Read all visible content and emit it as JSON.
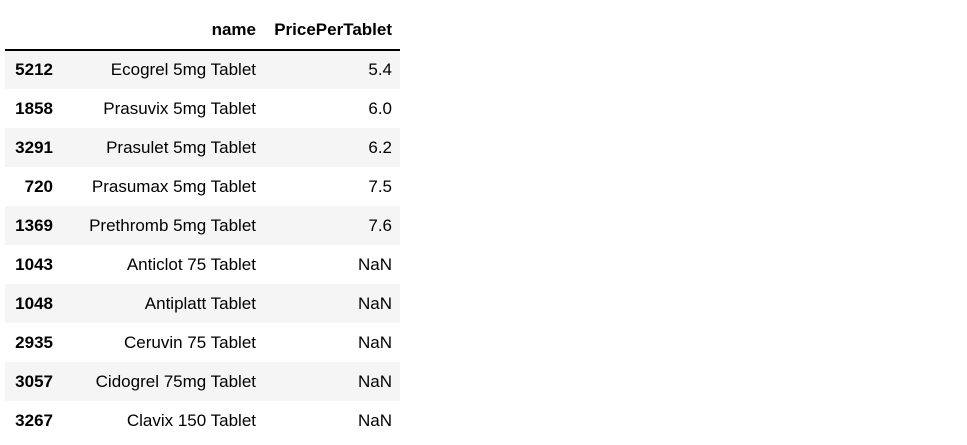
{
  "table": {
    "columns": [
      "",
      "name",
      "PricePerTablet"
    ],
    "rows": [
      {
        "index": "5212",
        "name": "Ecogrel 5mg Tablet",
        "price": "5.4"
      },
      {
        "index": "1858",
        "name": "Prasuvix 5mg Tablet",
        "price": "6.0"
      },
      {
        "index": "3291",
        "name": "Prasulet 5mg Tablet",
        "price": "6.2"
      },
      {
        "index": "720",
        "name": "Prasumax 5mg Tablet",
        "price": "7.5"
      },
      {
        "index": "1369",
        "name": "Prethromb 5mg Tablet",
        "price": "7.6"
      },
      {
        "index": "1043",
        "name": "Anticlot 75 Tablet",
        "price": "NaN"
      },
      {
        "index": "1048",
        "name": "Antiplatt Tablet",
        "price": "NaN"
      },
      {
        "index": "2935",
        "name": "Ceruvin 75 Tablet",
        "price": "NaN"
      },
      {
        "index": "3057",
        "name": "Cidogrel 75mg Tablet",
        "price": "NaN"
      },
      {
        "index": "3267",
        "name": "Clavix 150 Tablet",
        "price": "NaN"
      }
    ]
  }
}
